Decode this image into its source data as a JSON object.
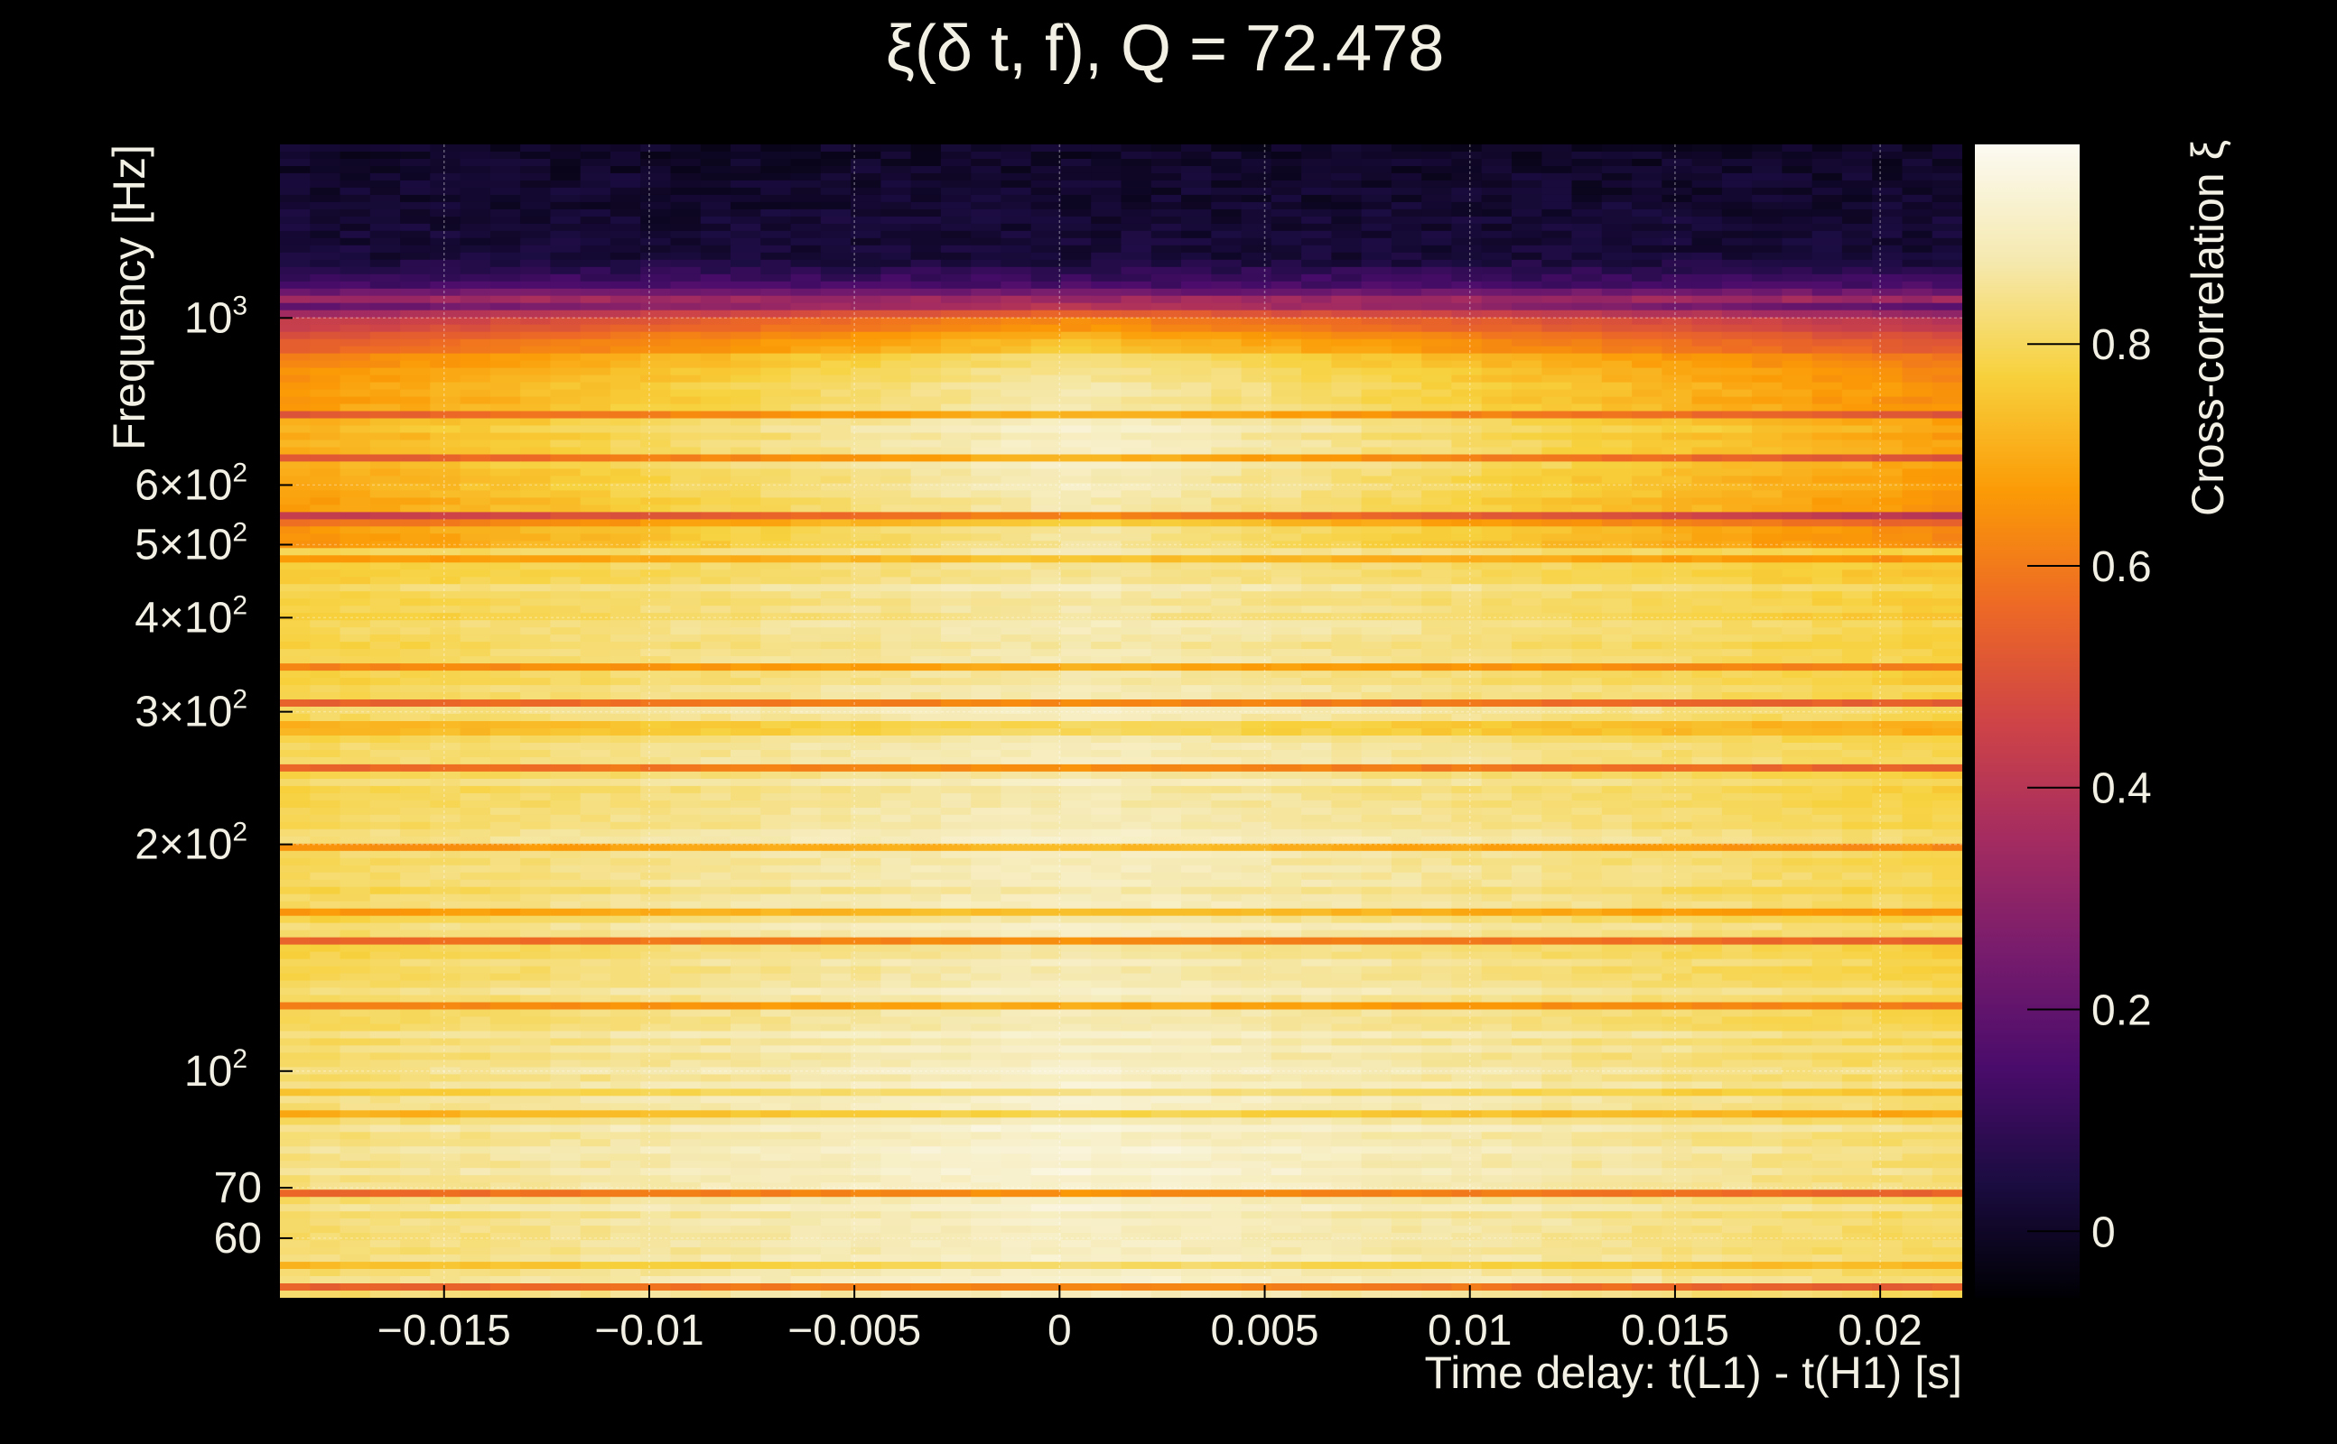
{
  "chart_data": {
    "type": "heatmap",
    "title": "ξ(δ t, f), Q = 72.478",
    "xlabel": "Time delay: t(L1) - t(H1) [s]",
    "ylabel": "Frequency [Hz]",
    "colorbar_label": "Cross-correlation ξ",
    "xlim": [
      -0.019,
      0.022
    ],
    "ylim": [
      50,
      1700
    ],
    "y_scale": "log",
    "clim": [
      -0.06,
      0.98
    ],
    "colormap": "inferno",
    "grid": true,
    "x_ticks": [
      {
        "value": -0.015,
        "label": "−0.015"
      },
      {
        "value": -0.01,
        "label": "−0.01"
      },
      {
        "value": -0.005,
        "label": "−0.005"
      },
      {
        "value": 0,
        "label": "0"
      },
      {
        "value": 0.005,
        "label": "0.005"
      },
      {
        "value": 0.01,
        "label": "0.01"
      },
      {
        "value": 0.015,
        "label": "0.015"
      },
      {
        "value": 0.02,
        "label": "0.02"
      }
    ],
    "y_ticks": [
      {
        "value": 1000,
        "mant": "10",
        "sup": "3"
      },
      {
        "value": 600,
        "mant": "6×10",
        "sup": "2"
      },
      {
        "value": 500,
        "mant": "5×10",
        "sup": "2"
      },
      {
        "value": 400,
        "mant": "4×10",
        "sup": "2"
      },
      {
        "value": 300,
        "mant": "3×10",
        "sup": "2"
      },
      {
        "value": 200,
        "mant": "2×10",
        "sup": "2"
      },
      {
        "value": 100,
        "mant": "10",
        "sup": "2"
      },
      {
        "value": 70,
        "mant": "70",
        "sup": ""
      },
      {
        "value": 60,
        "mant": "60",
        "sup": ""
      }
    ],
    "colorbar_ticks": [
      {
        "value": 0.8,
        "label": "0.8"
      },
      {
        "value": 0.6,
        "label": "0.6"
      },
      {
        "value": 0.4,
        "label": "0.4"
      },
      {
        "value": 0.2,
        "label": "0.2"
      },
      {
        "value": 0,
        "label": "0"
      }
    ],
    "profile_frequencies": [
      52,
      60,
      70,
      80,
      100,
      120,
      150,
      200,
      250,
      300,
      400,
      500,
      600,
      700,
      800,
      900,
      1000,
      1100,
      1200,
      1700
    ],
    "profile_correlation_at_zero_delay": [
      0.93,
      0.94,
      0.95,
      0.95,
      0.94,
      0.93,
      0.92,
      0.92,
      0.92,
      0.91,
      0.9,
      0.9,
      0.93,
      0.95,
      0.9,
      0.82,
      0.62,
      0.15,
      0.03,
      0.0
    ]
  }
}
